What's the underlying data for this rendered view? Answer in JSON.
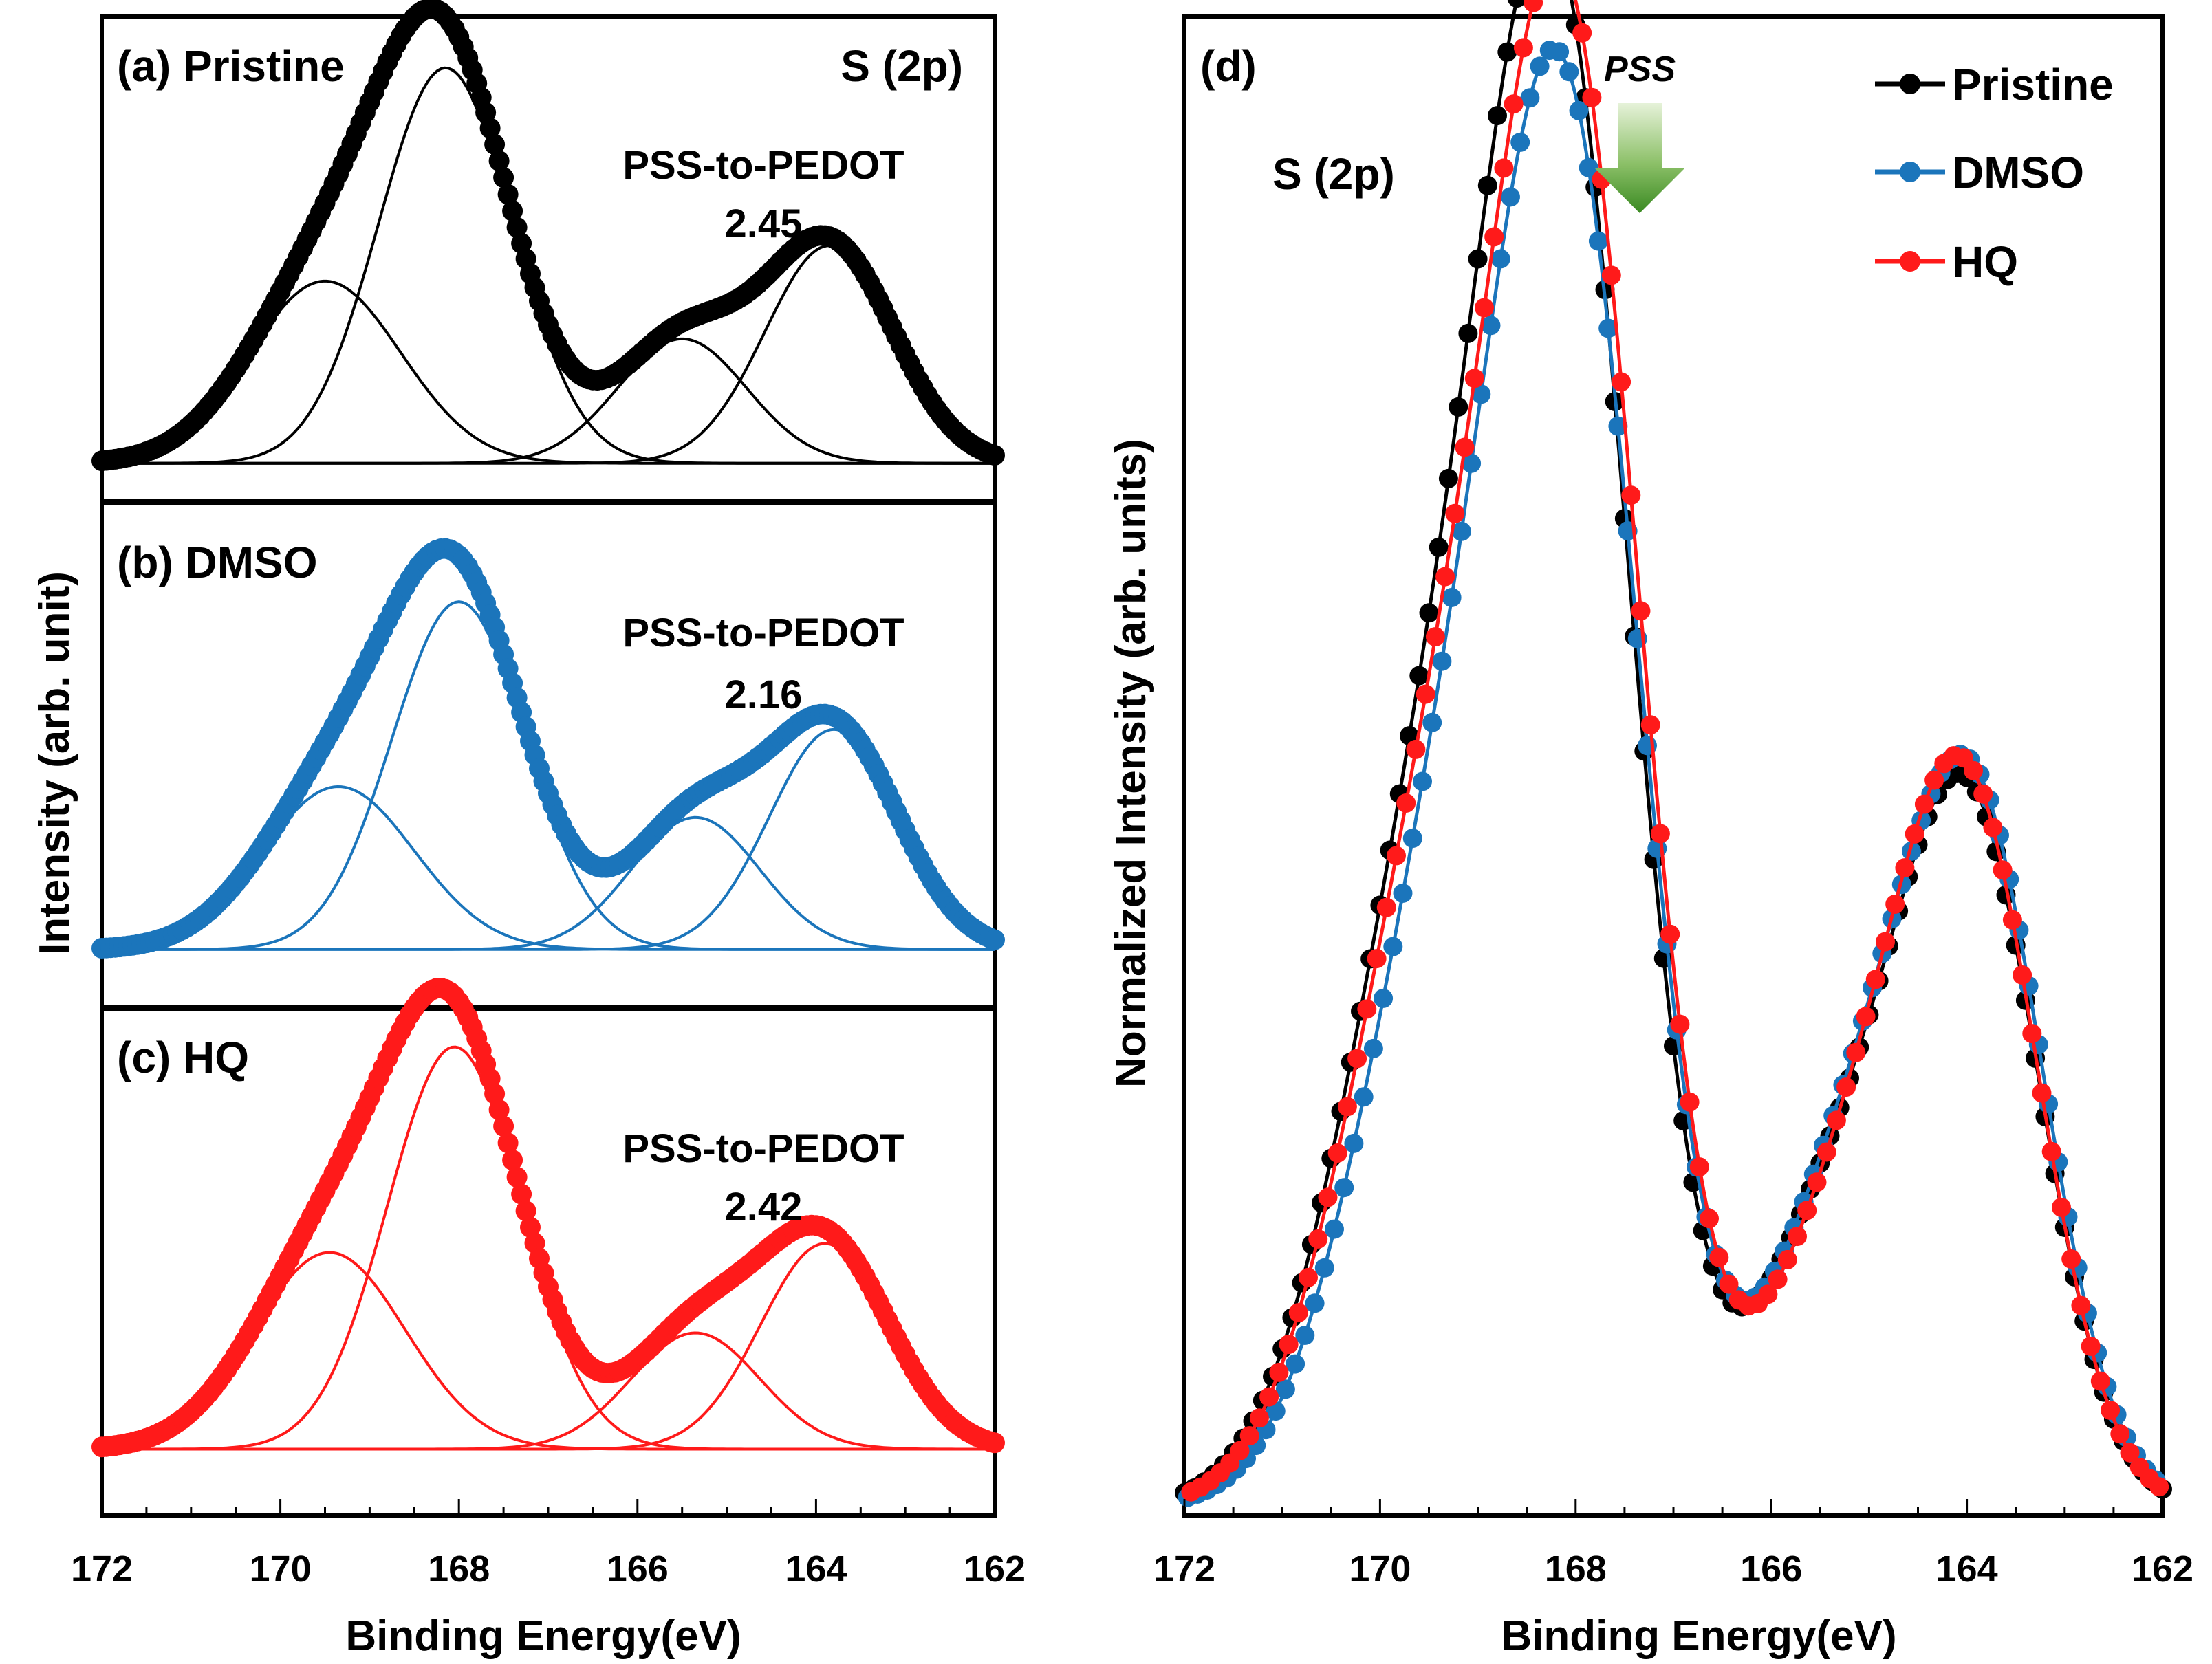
{
  "chart_data": [
    {
      "panel": "a",
      "type": "scatter",
      "label": "(a) Pristine",
      "corner_label": "S (2p)",
      "annotation": {
        "title": "PSS-to-PEDOT",
        "value": "2.45"
      },
      "color": "#000000",
      "xlim": [
        172,
        162
      ],
      "ylim": [
        0,
        1.0
      ],
      "baseline": 0.05,
      "components": [
        {
          "center": 169.5,
          "amp": 0.41,
          "sigma": 0.85
        },
        {
          "center": 168.15,
          "amp": 0.89,
          "sigma": 0.75
        },
        {
          "center": 165.5,
          "amp": 0.28,
          "sigma": 0.72
        },
        {
          "center": 163.85,
          "amp": 0.49,
          "sigma": 0.72
        }
      ]
    },
    {
      "panel": "b",
      "type": "scatter",
      "label": "(b) DMSO",
      "annotation": {
        "title": "PSS-to-PEDOT",
        "value": "2.16"
      },
      "color": "#1b75bb",
      "xlim": [
        172,
        162
      ],
      "ylim": [
        0,
        1.0
      ],
      "baseline": 0.03,
      "components": [
        {
          "center": 169.35,
          "amp": 0.37,
          "sigma": 0.85
        },
        {
          "center": 168.0,
          "amp": 0.79,
          "sigma": 0.75
        },
        {
          "center": 165.35,
          "amp": 0.3,
          "sigma": 0.72
        },
        {
          "center": 163.8,
          "amp": 0.5,
          "sigma": 0.72
        }
      ]
    },
    {
      "panel": "c",
      "type": "scatter",
      "label": "(c) HQ",
      "annotation": {
        "title": "PSS-to-PEDOT",
        "value": "2.42"
      },
      "color": "#ff1a1a",
      "xlim": [
        172,
        162
      ],
      "ylim": [
        0,
        1.0
      ],
      "baseline": 0.05,
      "components": [
        {
          "center": 169.45,
          "amp": 0.44,
          "sigma": 0.85
        },
        {
          "center": 168.05,
          "amp": 0.9,
          "sigma": 0.75
        },
        {
          "center": 165.35,
          "amp": 0.26,
          "sigma": 0.72
        },
        {
          "center": 163.9,
          "amp": 0.46,
          "sigma": 0.72
        }
      ]
    },
    {
      "panel": "d",
      "type": "scatter",
      "label": "(d)",
      "inner_label": "S (2p)",
      "pss_marker": {
        "label": "PSS",
        "x": 167.5
      },
      "xlim": [
        172,
        162
      ],
      "ylim": [
        0,
        1.03
      ],
      "series": [
        {
          "name": "Pristine",
          "color": "#000000",
          "components": [
            {
              "center": 169.5,
              "amp": 0.44,
              "sigma": 0.9
            },
            {
              "center": 168.15,
              "amp": 0.95,
              "sigma": 0.75
            },
            {
              "center": 165.3,
              "amp": 0.2,
              "sigma": 0.8
            },
            {
              "center": 163.95,
              "amp": 0.46,
              "sigma": 0.72
            }
          ]
        },
        {
          "name": "DMSO",
          "color": "#1b75bb",
          "components": [
            {
              "center": 169.35,
              "amp": 0.41,
              "sigma": 0.9
            },
            {
              "center": 168.05,
              "amp": 0.86,
              "sigma": 0.75
            },
            {
              "center": 165.2,
              "amp": 0.22,
              "sigma": 0.8
            },
            {
              "center": 163.9,
              "amp": 0.46,
              "sigma": 0.72
            }
          ]
        },
        {
          "name": "HQ",
          "color": "#ff1a1a",
          "components": [
            {
              "center": 169.45,
              "amp": 0.44,
              "sigma": 0.9
            },
            {
              "center": 168.05,
              "amp": 0.94,
              "sigma": 0.75
            },
            {
              "center": 165.2,
              "amp": 0.2,
              "sigma": 0.8
            },
            {
              "center": 163.95,
              "amp": 0.46,
              "sigma": 0.72
            }
          ]
        }
      ]
    }
  ],
  "axes": {
    "left_x_ticks": [
      "172",
      "170",
      "168",
      "166",
      "164",
      "162"
    ],
    "right_x_ticks": [
      "172",
      "170",
      "168",
      "166",
      "164",
      "162"
    ],
    "left_xlabel": "Binding Energy(eV)",
    "right_xlabel": "Binding Energy(eV)",
    "left_ylabel": "Intensity (arb. unit)",
    "right_ylabel": "Normalized Intensity (arb. units)"
  }
}
